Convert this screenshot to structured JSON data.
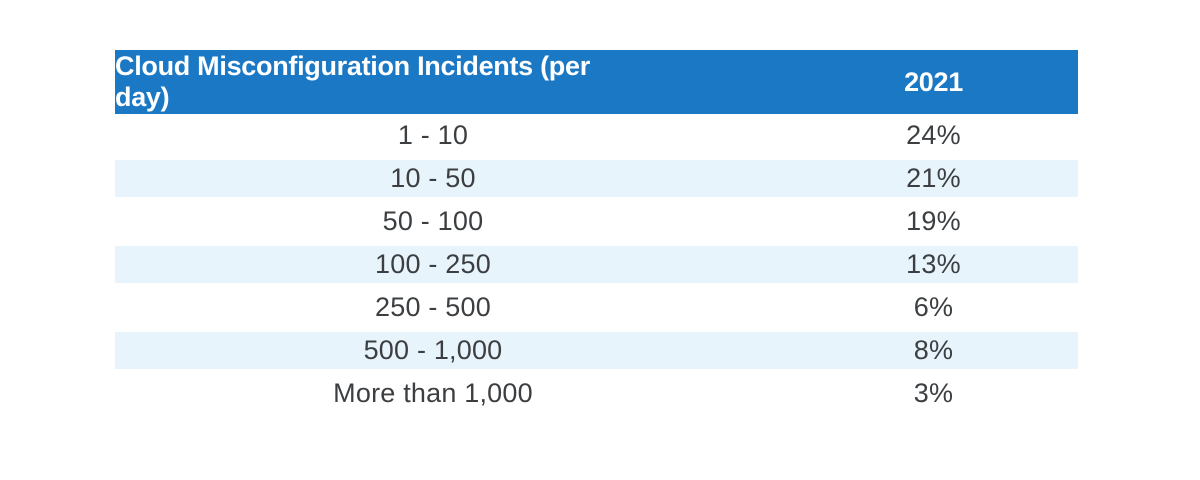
{
  "table": {
    "header": {
      "incidents_label": "Cloud Misconfiguration Incidents (per day)",
      "year_label": "2021"
    },
    "rows": [
      {
        "range": "1 - 10",
        "value": "24%"
      },
      {
        "range": "10 - 50",
        "value": "21%"
      },
      {
        "range": "50 - 100",
        "value": "19%"
      },
      {
        "range": "100 - 250",
        "value": "13%"
      },
      {
        "range": "250 - 500",
        "value": "6%"
      },
      {
        "range": "500 - 1,000",
        "value": "8%"
      },
      {
        "range": "More than 1,000",
        "value": "3%"
      }
    ]
  },
  "colors": {
    "header_bg": "#1b78c4",
    "header_text": "#ffffff",
    "stripe_bg": "#e8f4fb",
    "body_text": "#3c3f42",
    "page_bg": "#ffffff"
  },
  "chart_data": {
    "type": "table",
    "title": "Cloud Misconfiguration Incidents (per day)",
    "columns": [
      "Cloud Misconfiguration Incidents (per day)",
      "2021"
    ],
    "categories": [
      "1 - 10",
      "10 - 50",
      "50 - 100",
      "100 - 250",
      "250 - 500",
      "500 - 1,000",
      "More than 1,000"
    ],
    "series": [
      {
        "name": "2021",
        "values": [
          24,
          21,
          19,
          13,
          6,
          8,
          3
        ]
      }
    ],
    "unit": "%",
    "layout": "striped rows, blue header band, no outer border"
  }
}
